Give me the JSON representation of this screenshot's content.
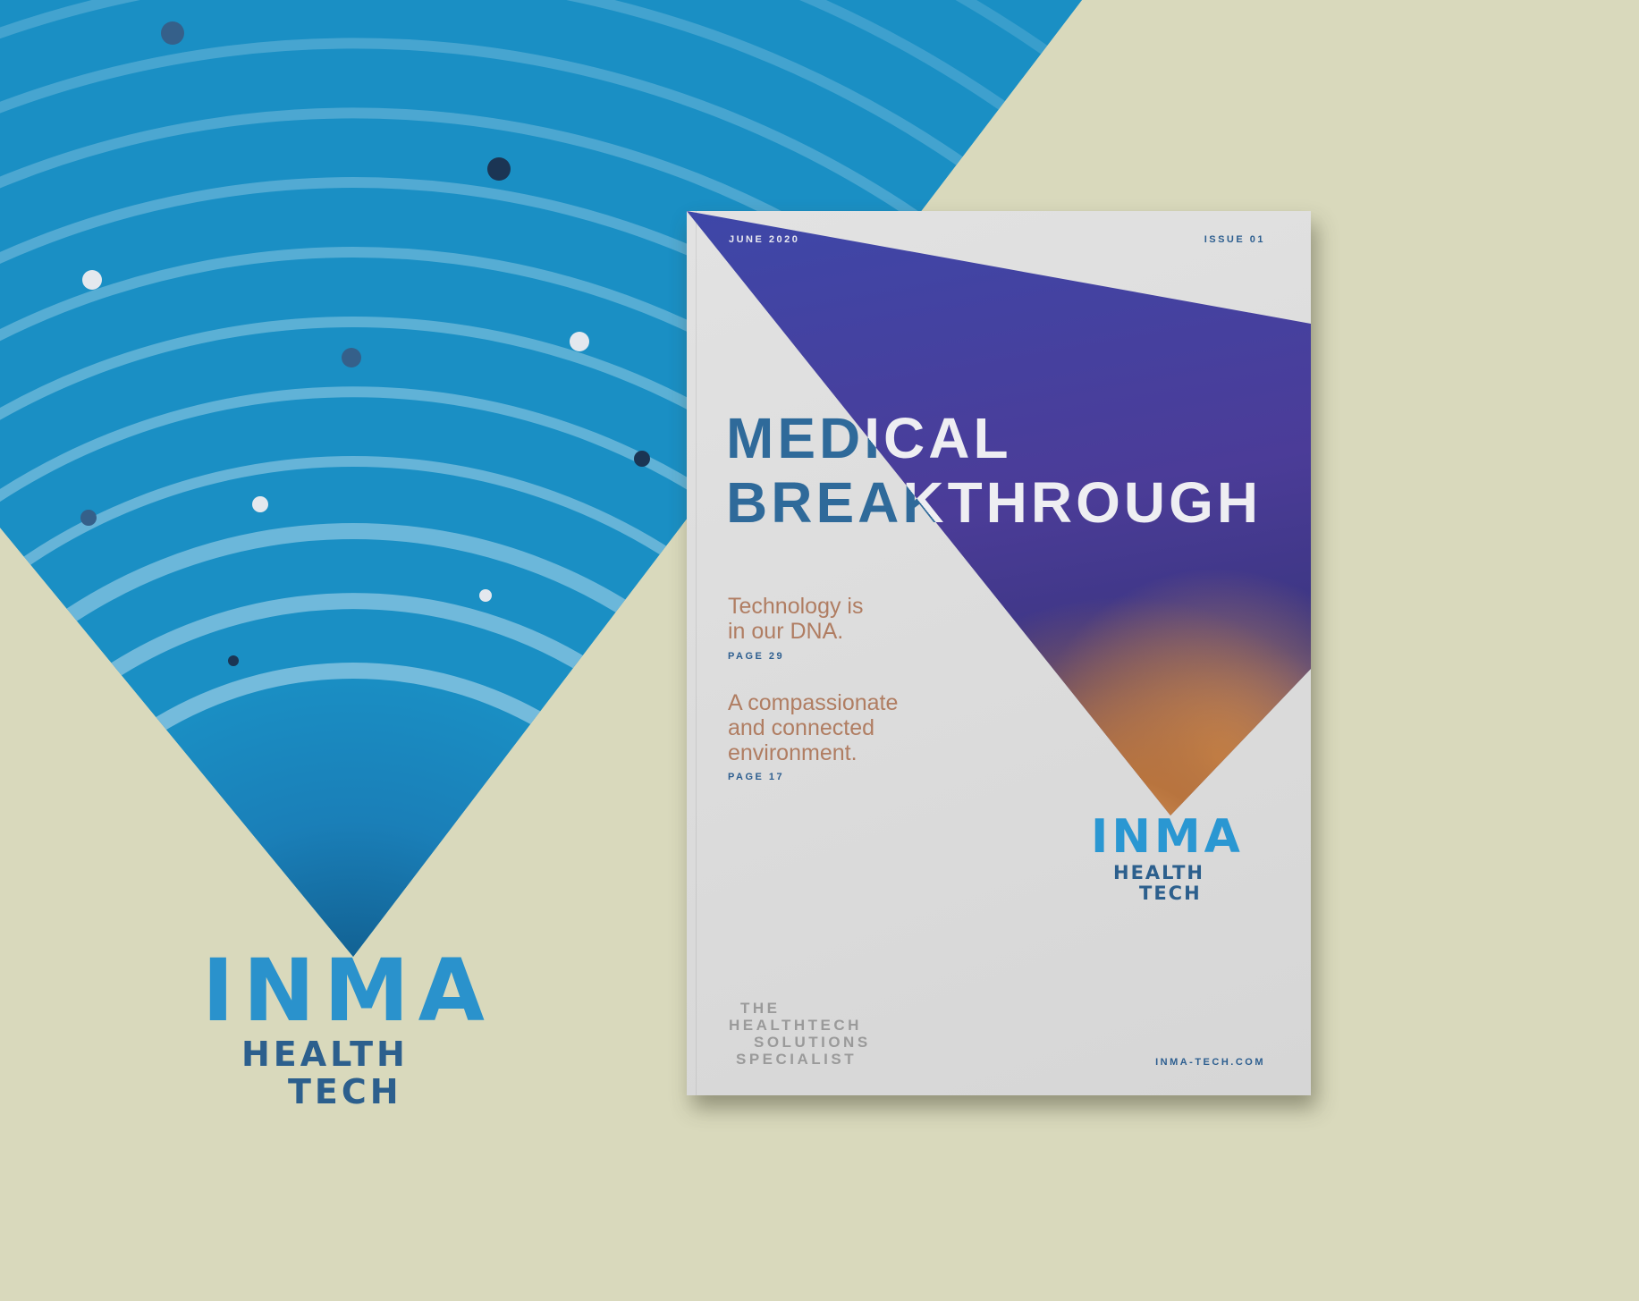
{
  "colors": {
    "background": "#d9d9bc",
    "blue": "#1a8fc4",
    "navy": "#2c5f8d",
    "copper": "#b07d62",
    "page": "#dcdcdc"
  },
  "logo": {
    "name": "INMA",
    "line1": "HEALTH",
    "line2": "TECH"
  },
  "magazine": {
    "date": "JUNE 2020",
    "issue": "ISSUE 01",
    "headline": {
      "line1": "MEDICAL",
      "line2": "BREAKTHROUGH"
    },
    "teasers": [
      {
        "text_lines": [
          "Technology is",
          "in our DNA."
        ],
        "page": "PAGE 29"
      },
      {
        "text_lines": [
          "A compassionate",
          "and connected",
          "environment."
        ],
        "page": "PAGE 17"
      }
    ],
    "logo": {
      "name": "INMA",
      "line1": "HEALTH",
      "line2": "TECH"
    },
    "tagline": [
      "THE",
      "HEALTHTECH",
      "SOLUTIONS",
      "SPECIALIST"
    ],
    "url": "INMA-TECH.COM"
  }
}
